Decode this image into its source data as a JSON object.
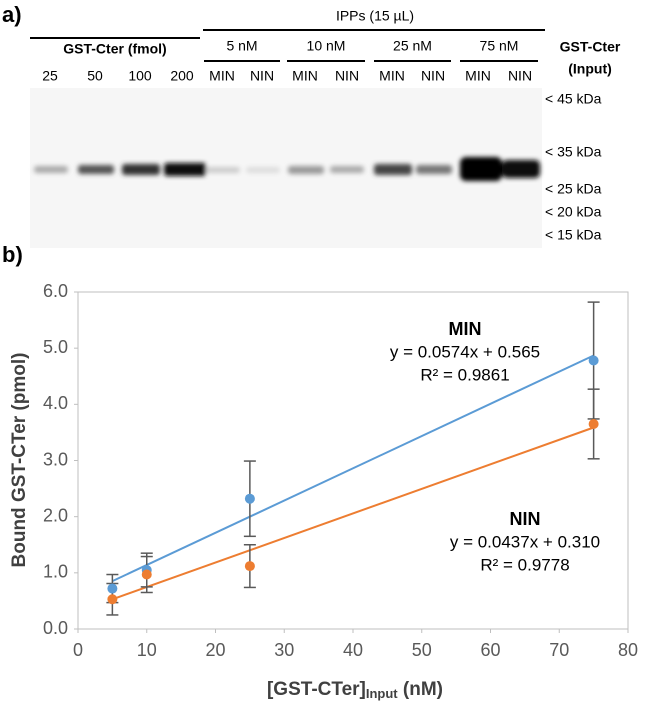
{
  "blot": {
    "panel_label": "a)",
    "group_label": "IPPs (15 µL)",
    "standard_label": "GST-Cter (fmol)",
    "standard_lanes": [
      "25",
      "50",
      "100",
      "200"
    ],
    "conditions": [
      {
        "label": "5 nM",
        "lanes": [
          "MIN",
          "NIN"
        ]
      },
      {
        "label": "10 nM",
        "lanes": [
          "MIN",
          "NIN"
        ]
      },
      {
        "label": "25 nM",
        "lanes": [
          "MIN",
          "NIN"
        ]
      },
      {
        "label": "75 nM",
        "lanes": [
          "MIN",
          "NIN"
        ]
      }
    ],
    "input_label": [
      "GST-Cter",
      "(Input)"
    ],
    "markers": [
      "< 45 kDa",
      "< 35 kDa",
      "< 25 kDa",
      "< 20 kDa",
      "< 15 kDa"
    ]
  },
  "chart_data": {
    "type": "scatter",
    "panel_label": "b)",
    "x_label": "[GST-CTer]",
    "x_label_sub": "Input",
    "x_label_suffix": " (nM)",
    "y_label": "Bound GST-CTer (pmol)",
    "x": [
      5,
      10,
      25,
      75
    ],
    "series": [
      {
        "name": "MIN",
        "color": "#5b9bd5",
        "values": [
          0.72,
          1.05,
          2.32,
          4.78
        ],
        "errors": [
          0.25,
          0.3,
          0.67,
          1.04
        ],
        "trendline": {
          "slope": 0.0574,
          "intercept": 0.565
        },
        "equation": "y = 0.0574x + 0.565",
        "r2": "R² = 0.9861"
      },
      {
        "name": "NIN",
        "color": "#ed7d31",
        "values": [
          0.53,
          0.97,
          1.12,
          3.65
        ],
        "errors": [
          0.28,
          0.32,
          0.38,
          0.62
        ],
        "trendline": {
          "slope": 0.0437,
          "intercept": 0.31
        },
        "equation": "y = 0.0437x + 0.310",
        "r2": "R² = 0.9778"
      }
    ],
    "xlim": [
      0,
      80
    ],
    "xticks": [
      0,
      10,
      20,
      30,
      40,
      50,
      60,
      70,
      80
    ],
    "ylim": [
      0,
      6
    ],
    "yticks": [
      {
        "value": 0,
        "label": "0.0"
      },
      {
        "value": 1,
        "label": "1.0"
      },
      {
        "value": 2,
        "label": "2.0"
      },
      {
        "value": 3,
        "label": "3.0"
      },
      {
        "value": 4,
        "label": "4.0"
      },
      {
        "value": 5,
        "label": "5.0"
      },
      {
        "value": 6,
        "label": "6.0"
      }
    ],
    "grid": false
  }
}
